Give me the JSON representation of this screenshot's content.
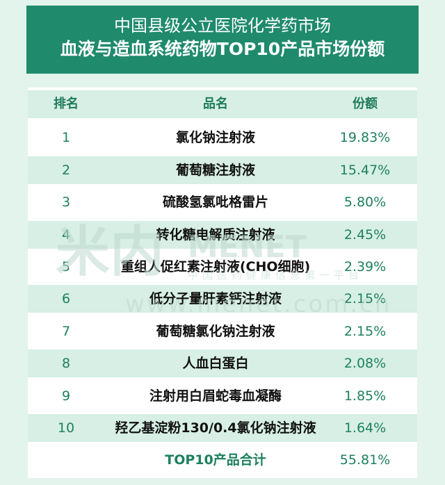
{
  "header": {
    "title_lines": [
      "中国县级公立医院化学药市场",
      "血液与造血系统药物TOP10产品市场份额"
    ]
  },
  "table": {
    "columns": [
      "排名",
      "品名",
      "份额"
    ],
    "rows": [
      [
        "1",
        "氯化钠注射液",
        "19.83%"
      ],
      [
        "2",
        "葡萄糖注射液",
        "15.47%"
      ],
      [
        "3",
        "硫酸氢氯吡格雷片",
        "5.80%"
      ],
      [
        "4",
        "转化糖电解质注射液",
        "2.45%"
      ],
      [
        "5",
        "重组人促红素注射液(CHO细胞)",
        "2.39%"
      ],
      [
        "6",
        "低分子量肝素钙注射液",
        "2.15%"
      ],
      [
        "7",
        "葡萄糖氯化钠注射液",
        "2.15%"
      ],
      [
        "8",
        "人血白蛋白",
        "2.08%"
      ],
      [
        "9",
        "注射用白眉蛇毒血凝酶",
        "1.85%"
      ],
      [
        "10",
        "羟乙基淀粉130/0.4氯化钠注射液",
        "1.64%"
      ]
    ],
    "total": {
      "label": "TOP10产品合计",
      "value": "55.81%"
    }
  },
  "watermark": {
    "logo": "米内",
    "brand": "MENET",
    "slogan": "中国医药健康信息第一平台",
    "url": "www.menet.com.cn"
  }
}
